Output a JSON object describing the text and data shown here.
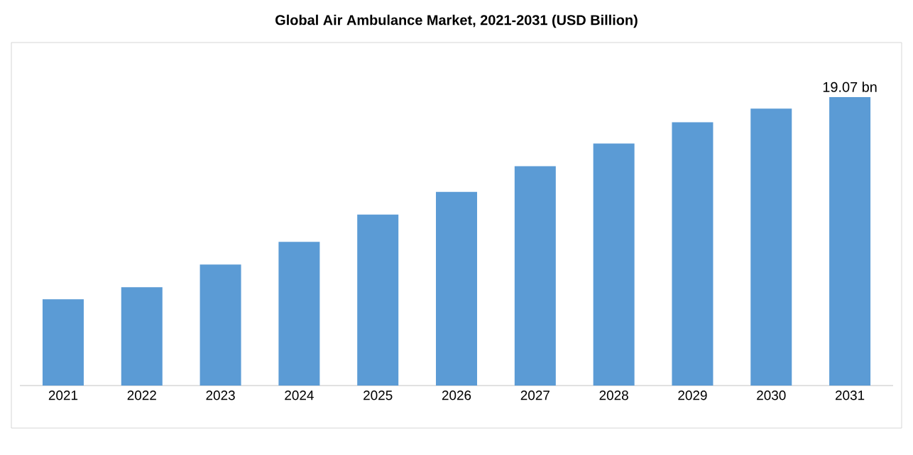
{
  "chart_data": {
    "type": "bar",
    "title": "Global Air Ambulance Market, 2021-2031 (USD Billion)",
    "categories": [
      "2021",
      "2022",
      "2023",
      "2024",
      "2025",
      "2026",
      "2027",
      "2028",
      "2029",
      "2030",
      "2031"
    ],
    "values": [
      5.7,
      6.5,
      8.0,
      9.5,
      11.3,
      12.8,
      14.5,
      16.0,
      17.4,
      18.3,
      19.07
    ],
    "value_labels": [
      null,
      null,
      null,
      null,
      null,
      null,
      null,
      null,
      null,
      null,
      "19.07 bn"
    ],
    "color": "#5b9bd5",
    "tick_labels": "x"
  }
}
